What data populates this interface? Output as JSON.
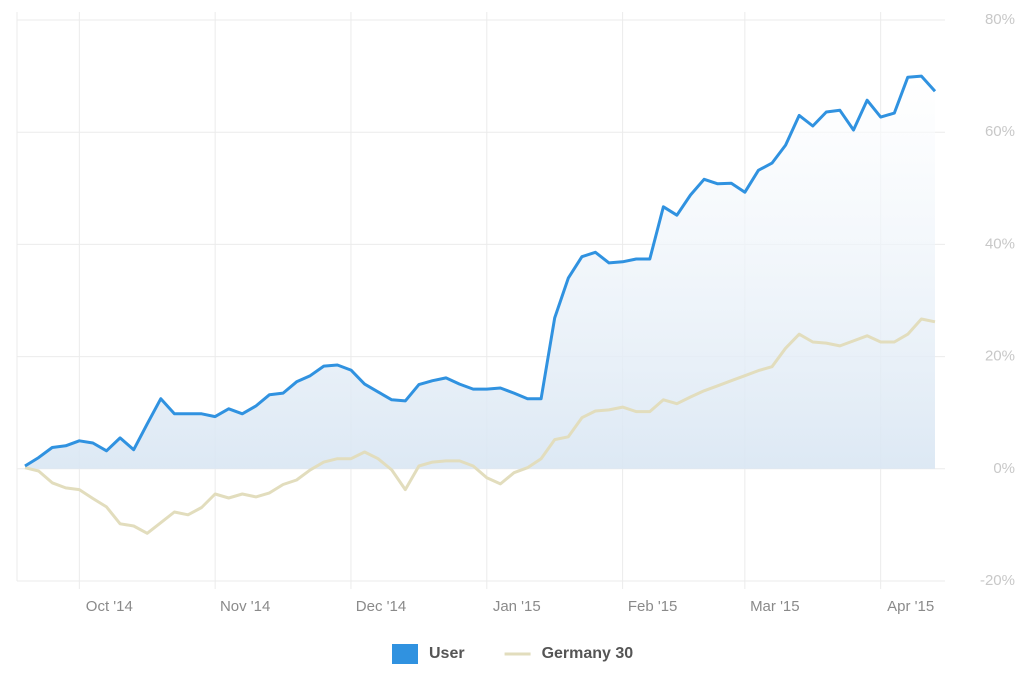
{
  "chart_data": {
    "type": "line",
    "categories": [
      null,
      null,
      null,
      null,
      "Oct '14",
      null,
      null,
      null,
      null,
      null,
      null,
      null,
      null,
      null,
      "Nov '14",
      null,
      null,
      null,
      null,
      null,
      null,
      null,
      null,
      null,
      "Dec '14",
      null,
      null,
      null,
      null,
      null,
      null,
      null,
      null,
      null,
      "Jan '15",
      null,
      null,
      null,
      null,
      null,
      null,
      null,
      null,
      null,
      "Feb '15",
      null,
      null,
      null,
      null,
      null,
      null,
      null,
      null,
      "Mar '15",
      null,
      null,
      null,
      null,
      null,
      null,
      null,
      null,
      null,
      "Apr '15",
      null,
      null,
      null,
      null
    ],
    "series": [
      {
        "name": "User",
        "color": "#3092e0",
        "area": true,
        "values": [
          0.5,
          2,
          3.8,
          4.1,
          5.0,
          4.6,
          3.2,
          5.5,
          3.4,
          8.0,
          12.5,
          9.8,
          9.8,
          9.8,
          9.3,
          10.7,
          9.8,
          11.2,
          13.2,
          13.5,
          15.5,
          16.6,
          18.3,
          18.5,
          17.6,
          15.1,
          13.7,
          12.3,
          12.1,
          15.0,
          15.7,
          16.2,
          15.1,
          14.2,
          14.2,
          14.4,
          13.5,
          12.5,
          12.5,
          26.9,
          34.0,
          37.8,
          38.6,
          36.7,
          36.9,
          37.4,
          37.4,
          46.7,
          45.2,
          48.8,
          51.6,
          50.8,
          50.9,
          49.3,
          53.2,
          54.5,
          57.7,
          63.0,
          61.1,
          63.6,
          63.9,
          60.4,
          65.7,
          62.7,
          63.4,
          69.8,
          70.0,
          67.3
        ]
      },
      {
        "name": "Germany 30",
        "color": "#e2ddbd",
        "area": false,
        "values": [
          0.2,
          -0.4,
          -2.5,
          -3.4,
          -3.7,
          -5.3,
          -6.8,
          -9.8,
          -10.2,
          -11.5,
          -9.6,
          -7.7,
          -8.2,
          -6.9,
          -4.5,
          -5.2,
          -4.5,
          -5.0,
          -4.3,
          -2.8,
          -2.0,
          -0.2,
          1.2,
          1.8,
          1.8,
          3.0,
          1.8,
          -0.2,
          -3.7,
          0.5,
          1.2,
          1.4,
          1.4,
          0.5,
          -1.6,
          -2.7,
          -0.7,
          0.2,
          1.8,
          5.2,
          5.7,
          9.1,
          10.3,
          10.5,
          11.0,
          10.2,
          10.2,
          12.3,
          11.6,
          12.8,
          13.9,
          14.8,
          15.7,
          16.6,
          17.5,
          18.2,
          21.5,
          24.0,
          22.6,
          22.4,
          21.9,
          22.8,
          23.7,
          22.6,
          22.6,
          24.0,
          26.7,
          26.2
        ]
      }
    ],
    "ylim": [
      -20,
      80
    ],
    "yticks": [
      {
        "value": -20,
        "label": "-20%"
      },
      {
        "value": 0,
        "label": "0%"
      },
      {
        "value": 20,
        "label": "20%"
      },
      {
        "value": 40,
        "label": "40%"
      },
      {
        "value": 60,
        "label": "60%"
      },
      {
        "value": 80,
        "label": "80%"
      }
    ],
    "grid": true,
    "legend": "bottom"
  }
}
